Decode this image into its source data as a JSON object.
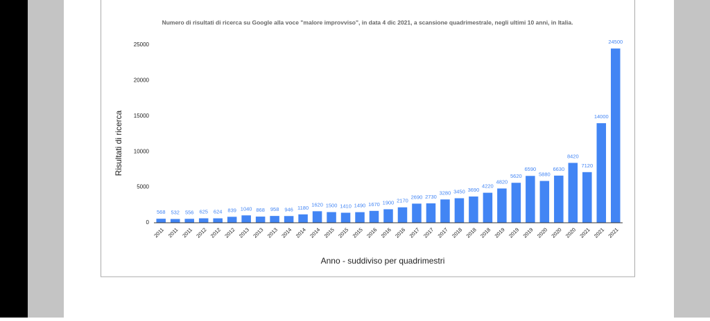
{
  "chart_data": {
    "type": "bar",
    "title": "Numero di risultati di ricerca su Google alla voce \"malore improvviso\", in data 4 dic 2021, a scansione quadrimestrale, negli ultimi 10 anni, in Italia.",
    "x_label": "Anno - suddiviso per quadrimestri",
    "y_label": "Risultati di ricerca",
    "categories": [
      "2011",
      "2011",
      "2011",
      "2012",
      "2012",
      "2012",
      "2013",
      "2013",
      "2013",
      "2014",
      "2014",
      "2014",
      "2015",
      "2015",
      "2015",
      "2016",
      "2016",
      "2016",
      "2017",
      "2017",
      "2017",
      "2018",
      "2018",
      "2018",
      "2019",
      "2019",
      "2019",
      "2020",
      "2020",
      "2020",
      "2021",
      "2021",
      "2021"
    ],
    "values": [
      568,
      532,
      556,
      625,
      624,
      839,
      1040,
      868,
      958,
      946,
      1180,
      1620,
      1500,
      1410,
      1490,
      1670,
      1900,
      2170,
      2690,
      2730,
      3280,
      3450,
      3690,
      4220,
      4820,
      5620,
      6590,
      5880,
      6630,
      8420,
      7120,
      14000,
      24500
    ],
    "color": "#4285f4",
    "ylim": [
      0,
      25000
    ],
    "yticks": [
      0,
      5000,
      10000,
      15000,
      20000,
      25000
    ],
    "grid": false
  }
}
